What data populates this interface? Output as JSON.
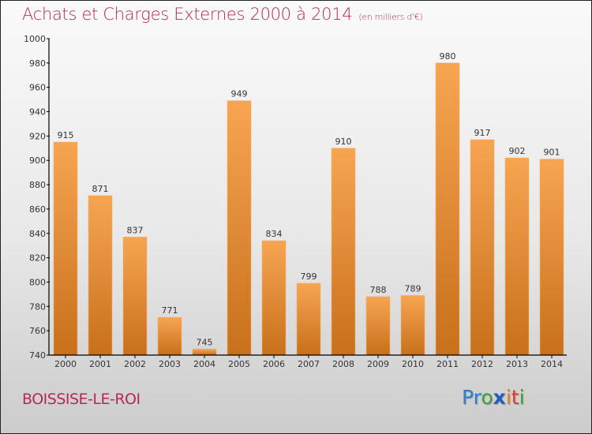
{
  "chart_data": {
    "type": "bar",
    "title": "Achats et Charges Externes 2000 à 2014",
    "unit_note": "(en milliers d'€)",
    "xlabel": "",
    "ylabel": "",
    "categories": [
      "2000",
      "2001",
      "2002",
      "2003",
      "2004",
      "2005",
      "2006",
      "2007",
      "2008",
      "2009",
      "2010",
      "2011",
      "2012",
      "2013",
      "2014"
    ],
    "values": [
      915,
      871,
      837,
      771,
      745,
      949,
      834,
      799,
      910,
      788,
      789,
      980,
      917,
      902,
      901
    ],
    "ylim": [
      740,
      1000
    ],
    "yticks": [
      740,
      760,
      780,
      800,
      820,
      840,
      860,
      880,
      900,
      920,
      940,
      960,
      980,
      1000
    ],
    "grid": false,
    "data_labels": true,
    "bar_color_top": "#f7a551",
    "bar_color_bottom": "#c8701c"
  },
  "footer": {
    "city": "BOISSISE-LE-ROI",
    "logo_letters": [
      {
        "ch": "P",
        "color": "#2a7fd4"
      },
      {
        "ch": "r",
        "color": "#2a7fd4"
      },
      {
        "ch": "o",
        "color": "#3aa63a"
      },
      {
        "ch": "x",
        "color": "#1f5fbf"
      },
      {
        "ch": "i",
        "color": "#f07a1a"
      },
      {
        "ch": "t",
        "color": "#e23b2a"
      },
      {
        "ch": "i",
        "color": "#3aa63a"
      }
    ]
  },
  "colors": {
    "title": "#b5295a",
    "city": "#b5295a"
  }
}
